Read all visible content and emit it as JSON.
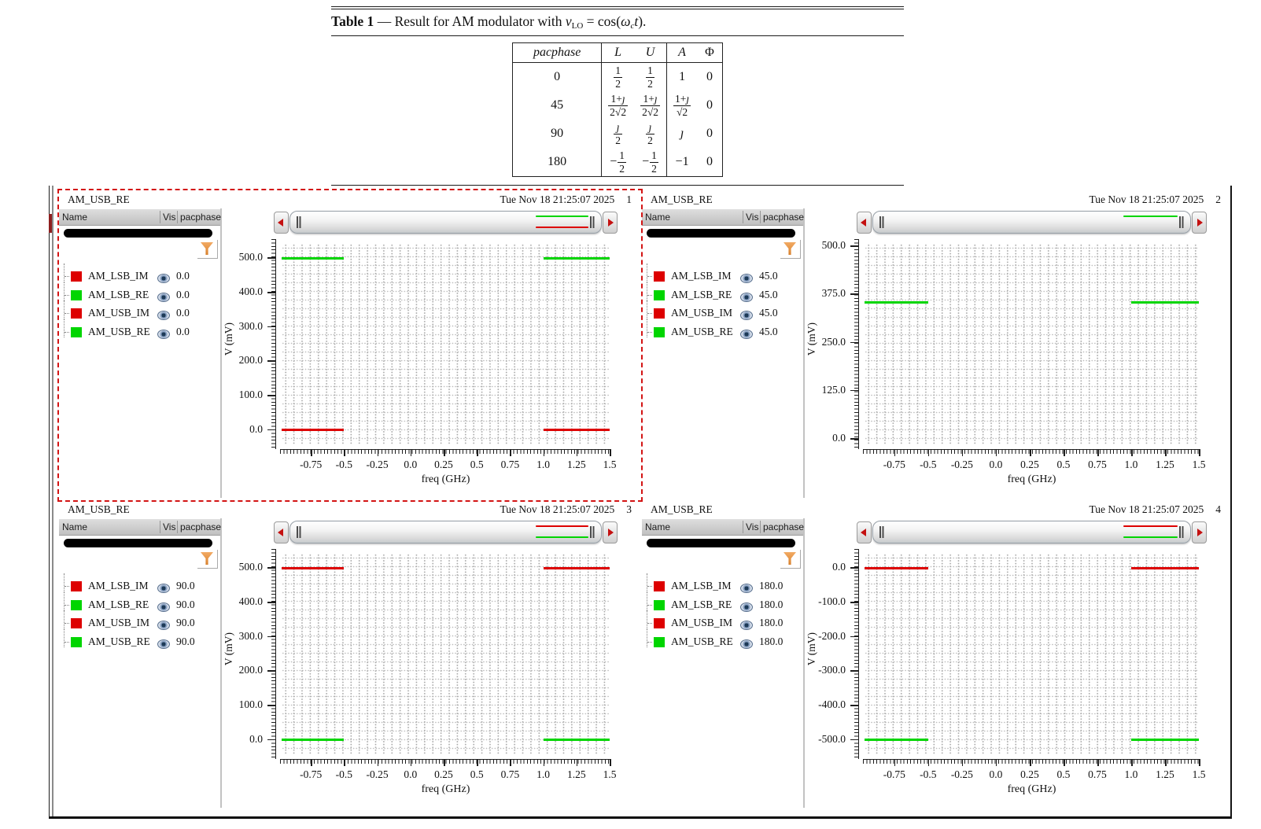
{
  "table": {
    "caption": {
      "label": "Table 1",
      "dash": "—",
      "text": "Result for AM modulator with",
      "var": "v",
      "var_sub": "LO",
      "eq": "= cos(",
      "omega": "ω",
      "omega_sub": "c",
      "tvar": "t",
      "close": ")."
    },
    "headers": [
      "pacphase",
      "L",
      "U",
      "A",
      "Φ"
    ],
    "rows": [
      {
        "cells": [
          {
            "t": "0"
          },
          {
            "f": [
              "1",
              "2"
            ]
          },
          {
            "f": [
              "1",
              "2"
            ]
          },
          {
            "t": "1"
          },
          {
            "t": "0"
          }
        ]
      },
      {
        "cells": [
          {
            "t": "45"
          },
          {
            "f": [
              "1+ȷ",
              "2√2"
            ]
          },
          {
            "f": [
              "1+ȷ",
              "2√2"
            ]
          },
          {
            "f": [
              "1+ȷ",
              "√2"
            ]
          },
          {
            "t": "0"
          }
        ]
      },
      {
        "cells": [
          {
            "t": "90"
          },
          {
            "f": [
              "ȷ",
              "2"
            ]
          },
          {
            "f": [
              "ȷ",
              "2"
            ]
          },
          {
            "t": "ȷ"
          },
          {
            "t": "0"
          }
        ]
      },
      {
        "cells": [
          {
            "t": "180"
          },
          {
            "f": [
              "1",
              "2"
            ],
            "neg": true
          },
          {
            "f": [
              "1",
              "2"
            ],
            "neg": true
          },
          {
            "t": "−1"
          },
          {
            "t": "0"
          }
        ]
      }
    ]
  },
  "panels": [
    {
      "title": "AM_USB_RE",
      "timestamp": "Tue Nov 18 21:25:07 2025",
      "number": "1",
      "selected": true,
      "legend": {
        "columns": [
          "Name",
          "Vis",
          "pacphase"
        ],
        "rows": [
          {
            "name": "AM_LSB_IM",
            "color": "#dd0000",
            "value": "0.0"
          },
          {
            "name": "AM_LSB_RE",
            "color": "#00d500",
            "value": "0.0"
          },
          {
            "name": "AM_USB_IM",
            "color": "#dd0000",
            "value": "0.0"
          },
          {
            "name": "AM_USB_RE",
            "color": "#00d500",
            "value": "0.0"
          }
        ]
      },
      "preview": [
        {
          "color": "#00d500",
          "position": "top"
        },
        {
          "color": "#dd0000",
          "position": "bottom"
        }
      ],
      "chart_data": {
        "type": "line",
        "xlabel": "freq (GHz)",
        "ylabel": "V (mV)",
        "xlim": [
          -0.97,
          1.5
        ],
        "ylim": [
          -42,
          542
        ],
        "xticks": [
          {
            "v": -0.75,
            "label": "-0.75"
          },
          {
            "v": -0.5,
            "label": "-0.5"
          },
          {
            "v": -0.25,
            "label": "-0.25"
          },
          {
            "v": 0,
            "label": "0.0"
          },
          {
            "v": 0.25,
            "label": "0.25"
          },
          {
            "v": 0.5,
            "label": "0.5"
          },
          {
            "v": 0.75,
            "label": "0.75"
          },
          {
            "v": 1.0,
            "label": "1.0"
          },
          {
            "v": 1.25,
            "label": "1.25"
          },
          {
            "v": 1.5,
            "label": "1.5"
          }
        ],
        "yticks": [
          {
            "v": 500,
            "label": "500.0"
          },
          {
            "v": 400,
            "label": "400.0"
          },
          {
            "v": 300,
            "label": "300.0"
          },
          {
            "v": 200,
            "label": "200.0"
          },
          {
            "v": 100,
            "label": "100.0"
          },
          {
            "v": 0,
            "label": "0.0"
          }
        ],
        "series": [
          {
            "name": "AM_LSB_RE,AM_USB_RE",
            "color": "#00d500",
            "y": 500,
            "segments": [
              [
                -0.97,
                -0.5
              ],
              [
                1.0,
                1.5
              ]
            ]
          },
          {
            "name": "AM_LSB_IM,AM_USB_IM",
            "color": "#dd0000",
            "y": 0,
            "segments": [
              [
                -0.97,
                -0.5
              ],
              [
                1.0,
                1.5
              ]
            ]
          }
        ]
      }
    },
    {
      "title": "AM_USB_RE",
      "timestamp": "Tue Nov 18 21:25:07 2025",
      "number": "2",
      "selected": false,
      "legend": {
        "columns": [
          "Name",
          "Vis",
          "pacphase"
        ],
        "rows": [
          {
            "name": "AM_LSB_IM",
            "color": "#dd0000",
            "value": "45.0"
          },
          {
            "name": "AM_LSB_RE",
            "color": "#00d500",
            "value": "45.0"
          },
          {
            "name": "AM_USB_IM",
            "color": "#dd0000",
            "value": "45.0"
          },
          {
            "name": "AM_USB_RE",
            "color": "#00d500",
            "value": "45.0"
          }
        ]
      },
      "preview": [
        {
          "color": "#00d500",
          "position": "top"
        }
      ],
      "chart_data": {
        "type": "line",
        "xlabel": "freq (GHz)",
        "ylabel": "V (mV)",
        "xlim": [
          -0.97,
          1.5
        ],
        "ylim": [
          -14,
          506
        ],
        "xticks": [
          {
            "v": -0.75,
            "label": "-0.75"
          },
          {
            "v": -0.5,
            "label": "-0.5"
          },
          {
            "v": -0.25,
            "label": "-0.25"
          },
          {
            "v": 0,
            "label": "0.0"
          },
          {
            "v": 0.25,
            "label": "0.25"
          },
          {
            "v": 0.5,
            "label": "0.5"
          },
          {
            "v": 0.75,
            "label": "0.75"
          },
          {
            "v": 1.0,
            "label": "1.0"
          },
          {
            "v": 1.25,
            "label": "1.25"
          },
          {
            "v": 1.5,
            "label": "1.5"
          }
        ],
        "yticks": [
          {
            "v": 500,
            "label": "500.0"
          },
          {
            "v": 375,
            "label": "375.0"
          },
          {
            "v": 250,
            "label": "250.0"
          },
          {
            "v": 125,
            "label": "125.0"
          },
          {
            "v": 0,
            "label": "0.0"
          }
        ],
        "series": [
          {
            "name": "AM_LSB_RE,AM_USB_RE",
            "color": "#00d500",
            "y": 353.5,
            "segments": [
              [
                -0.97,
                -0.5
              ],
              [
                1.0,
                1.5
              ]
            ]
          }
        ]
      }
    },
    {
      "title": "AM_USB_RE",
      "timestamp": "Tue Nov 18 21:25:07 2025",
      "number": "3",
      "selected": false,
      "legend": {
        "columns": [
          "Name",
          "Vis",
          "pacphase"
        ],
        "rows": [
          {
            "name": "AM_LSB_IM",
            "color": "#dd0000",
            "value": "90.0"
          },
          {
            "name": "AM_LSB_RE",
            "color": "#00d500",
            "value": "90.0"
          },
          {
            "name": "AM_USB_IM",
            "color": "#dd0000",
            "value": "90.0"
          },
          {
            "name": "AM_USB_RE",
            "color": "#00d500",
            "value": "90.0"
          }
        ]
      },
      "preview": [
        {
          "color": "#dd0000",
          "position": "top"
        },
        {
          "color": "#00d500",
          "position": "bottom"
        }
      ],
      "chart_data": {
        "type": "line",
        "xlabel": "freq (GHz)",
        "ylabel": "V (mV)",
        "xlim": [
          -0.97,
          1.5
        ],
        "ylim": [
          -42,
          542
        ],
        "xticks": [
          {
            "v": -0.75,
            "label": "-0.75"
          },
          {
            "v": -0.5,
            "label": "-0.5"
          },
          {
            "v": -0.25,
            "label": "-0.25"
          },
          {
            "v": 0,
            "label": "0.0"
          },
          {
            "v": 0.25,
            "label": "0.25"
          },
          {
            "v": 0.5,
            "label": "0.5"
          },
          {
            "v": 0.75,
            "label": "0.75"
          },
          {
            "v": 1.0,
            "label": "1.0"
          },
          {
            "v": 1.25,
            "label": "1.25"
          },
          {
            "v": 1.5,
            "label": "1.5"
          }
        ],
        "yticks": [
          {
            "v": 500,
            "label": "500.0"
          },
          {
            "v": 400,
            "label": "400.0"
          },
          {
            "v": 300,
            "label": "300.0"
          },
          {
            "v": 200,
            "label": "200.0"
          },
          {
            "v": 100,
            "label": "100.0"
          },
          {
            "v": 0,
            "label": "0.0"
          }
        ],
        "series": [
          {
            "name": "AM_LSB_IM,AM_USB_IM",
            "color": "#dd0000",
            "y": 500,
            "segments": [
              [
                -0.97,
                -0.5
              ],
              [
                1.0,
                1.5
              ]
            ]
          },
          {
            "name": "AM_LSB_RE,AM_USB_RE",
            "color": "#00d500",
            "y": 0,
            "segments": [
              [
                -0.97,
                -0.5
              ],
              [
                1.0,
                1.5
              ]
            ]
          }
        ]
      }
    },
    {
      "title": "AM_USB_RE",
      "timestamp": "Tue Nov 18 21:25:07 2025",
      "number": "4",
      "selected": false,
      "legend": {
        "columns": [
          "Name",
          "Vis",
          "pacphase"
        ],
        "rows": [
          {
            "name": "AM_LSB_IM",
            "color": "#dd0000",
            "value": "180.0"
          },
          {
            "name": "AM_LSB_RE",
            "color": "#00d500",
            "value": "180.0"
          },
          {
            "name": "AM_USB_IM",
            "color": "#dd0000",
            "value": "180.0"
          },
          {
            "name": "AM_USB_RE",
            "color": "#00d500",
            "value": "180.0"
          }
        ]
      },
      "preview": [
        {
          "color": "#dd0000",
          "position": "top"
        },
        {
          "color": "#00d500",
          "position": "bottom"
        }
      ],
      "chart_data": {
        "type": "line",
        "xlabel": "freq (GHz)",
        "ylabel": "V (mV)",
        "xlim": [
          -0.97,
          1.5
        ],
        "ylim": [
          -542,
          42
        ],
        "xticks": [
          {
            "v": -0.75,
            "label": "-0.75"
          },
          {
            "v": -0.5,
            "label": "-0.5"
          },
          {
            "v": -0.25,
            "label": "-0.25"
          },
          {
            "v": 0,
            "label": "0.0"
          },
          {
            "v": 0.25,
            "label": "0.25"
          },
          {
            "v": 0.5,
            "label": "0.5"
          },
          {
            "v": 0.75,
            "label": "0.75"
          },
          {
            "v": 1.0,
            "label": "1.0"
          },
          {
            "v": 1.25,
            "label": "1.25"
          },
          {
            "v": 1.5,
            "label": "1.5"
          }
        ],
        "yticks": [
          {
            "v": 0,
            "label": "0.0"
          },
          {
            "v": -100,
            "label": "-100.0"
          },
          {
            "v": -200,
            "label": "-200.0"
          },
          {
            "v": -300,
            "label": "-300.0"
          },
          {
            "v": -400,
            "label": "-400.0"
          },
          {
            "v": -500,
            "label": "-500.0"
          }
        ],
        "series": [
          {
            "name": "AM_LSB_IM,AM_USB_IM",
            "color": "#dd0000",
            "y": 0,
            "segments": [
              [
                -0.97,
                -0.5
              ],
              [
                1.0,
                1.5
              ]
            ]
          },
          {
            "name": "AM_LSB_RE,AM_USB_RE",
            "color": "#00d500",
            "y": -500,
            "segments": [
              [
                -0.97,
                -0.5
              ],
              [
                1.0,
                1.5
              ]
            ]
          }
        ]
      }
    }
  ],
  "colors": {
    "trace_red": "#dd0000",
    "trace_green": "#00d500",
    "selection": "#d31414"
  }
}
